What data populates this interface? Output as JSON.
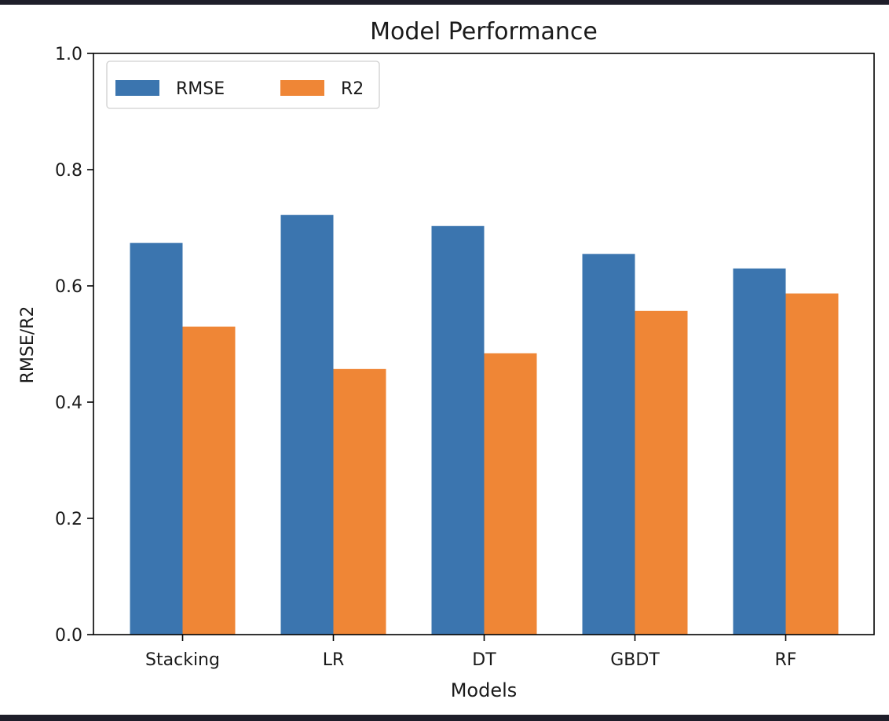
{
  "chart_data": {
    "type": "bar",
    "title": "Model Performance",
    "xlabel": "Models",
    "ylabel": "RMSE/R2",
    "categories": [
      "Stacking",
      "LR",
      "DT",
      "GBDT",
      "RF"
    ],
    "series": [
      {
        "name": "RMSE",
        "color": "#3b75af",
        "values": [
          0.674,
          0.722,
          0.703,
          0.655,
          0.63
        ]
      },
      {
        "name": "R2",
        "color": "#ef8636",
        "values": [
          0.53,
          0.457,
          0.484,
          0.557,
          0.587
        ]
      }
    ],
    "ylim": [
      0,
      1.0
    ],
    "yticks": [
      "0.0",
      "0.2",
      "0.4",
      "0.6",
      "0.8",
      "1.0"
    ],
    "grid": false,
    "legend_position": "top-left"
  }
}
